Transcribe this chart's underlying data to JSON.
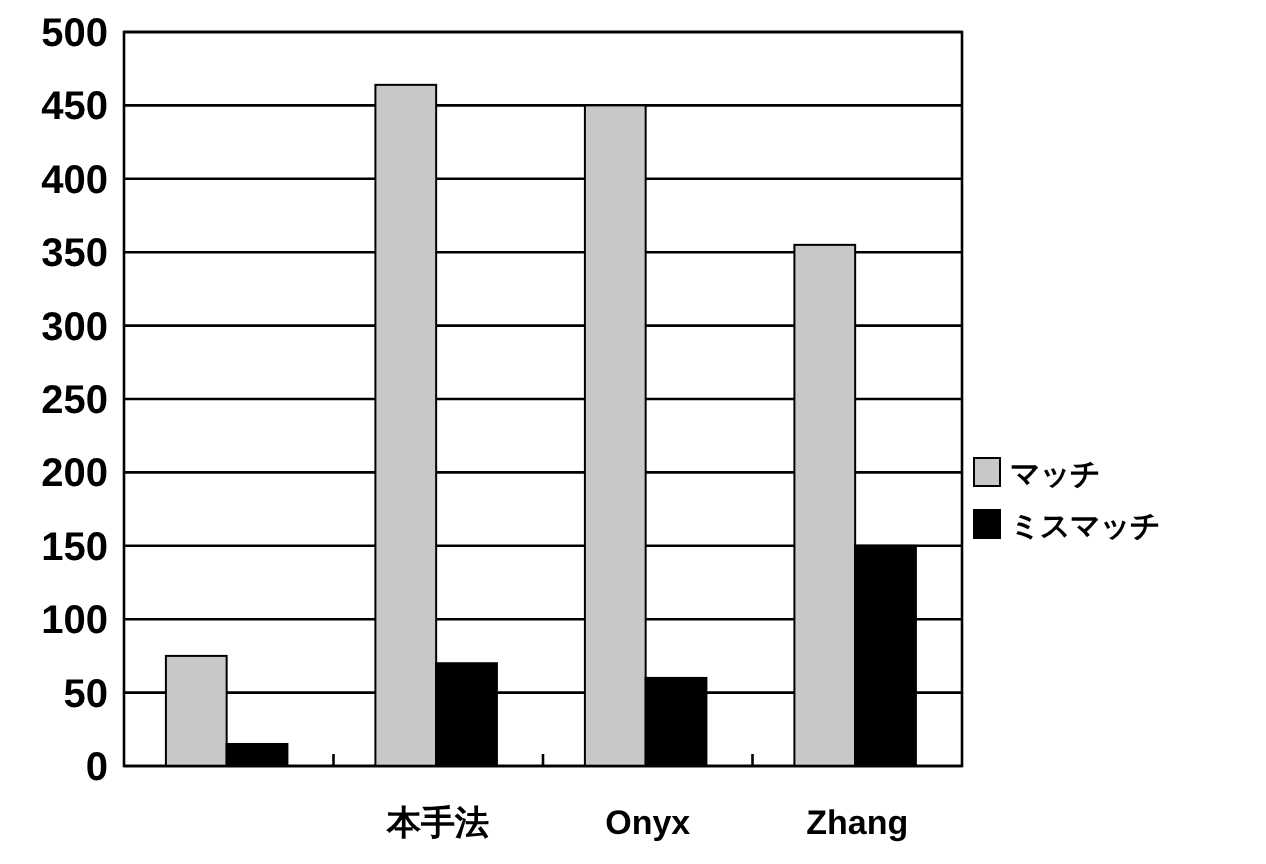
{
  "chart_data": {
    "type": "bar",
    "categories": [
      null,
      "本手法",
      "Onyx",
      "Zhang"
    ],
    "series": [
      {
        "name": "マッチ",
        "color": "#c8c8c8",
        "values": [
          75,
          464,
          450,
          355
        ]
      },
      {
        "name": "ミスマッチ",
        "color": "#000000",
        "values": [
          15,
          70,
          60,
          150
        ]
      }
    ],
    "ylim": [
      0,
      500
    ],
    "yticks": [
      0,
      50,
      100,
      150,
      200,
      250,
      300,
      350,
      400,
      450,
      500
    ],
    "grid": "y",
    "legend": "right"
  }
}
